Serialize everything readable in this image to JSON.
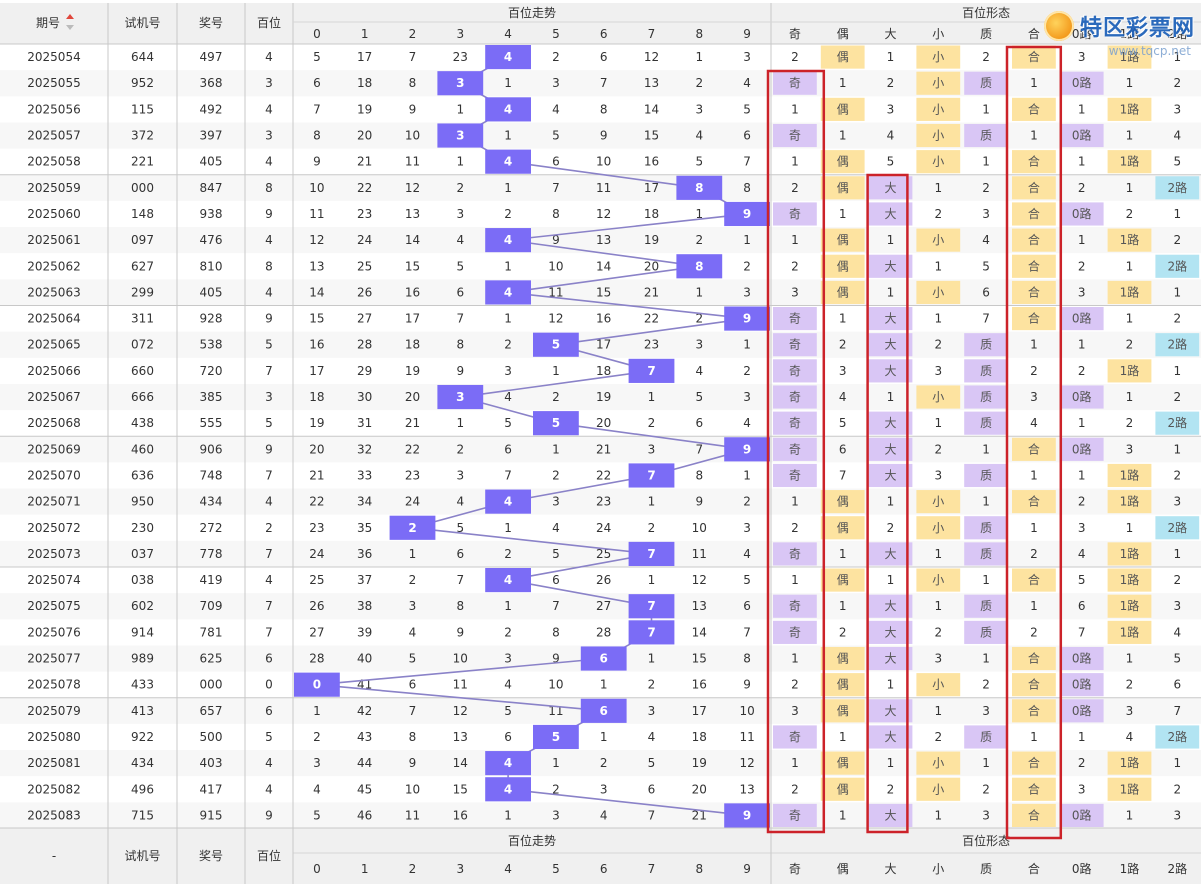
{
  "watermark": {
    "text": "特区彩票网",
    "sub": "www.tqcp.net"
  },
  "header": {
    "col_period": "期号",
    "sort_icon": "sort-up-icon",
    "col_trial": "试机号",
    "col_prize": "奖号",
    "col_hundreds": "百位",
    "group_trend": "百位走势",
    "group_form": "百位形态",
    "digits": [
      "0",
      "1",
      "2",
      "3",
      "4",
      "5",
      "6",
      "7",
      "8",
      "9"
    ],
    "form_cols": [
      "奇",
      "偶",
      "大",
      "小",
      "质",
      "合",
      "0路",
      "1路",
      "2路"
    ]
  },
  "footer": {
    "period": "-",
    "trial": "试机号",
    "prize": "奖号",
    "hundreds": "百位",
    "group_trend": "百位走势",
    "group_form": "百位形态"
  },
  "colors": {
    "ball": "#7b6cf6",
    "line": "#8a82c8",
    "purple_cell": "#d9c6f5",
    "yellow_cell": "#fde3a0",
    "blue_cell": "#b2e4f2",
    "red_box": "#cc2229",
    "header_bg": "#f0f0f0",
    "row_alt": "#f7f7f7"
  },
  "rows": [
    {
      "p": "2025054",
      "t": "644",
      "z": "497",
      "h": 4,
      "m": [
        5,
        17,
        7,
        23,
        null,
        2,
        6,
        12,
        1,
        3
      ],
      "f": [
        "2",
        "偶",
        "1",
        "小",
        "2",
        "合",
        "3",
        "1路",
        "1"
      ],
      "cut": true
    },
    {
      "p": "2025055",
      "t": "952",
      "z": "368",
      "h": 3,
      "m": [
        6,
        18,
        8,
        null,
        1,
        3,
        7,
        13,
        2,
        4
      ],
      "f": [
        "奇",
        "1",
        "2",
        "小",
        "质",
        "1",
        "0路",
        "1",
        "2"
      ]
    },
    {
      "p": "2025056",
      "t": "115",
      "z": "492",
      "h": 4,
      "m": [
        7,
        19,
        9,
        1,
        null,
        4,
        8,
        14,
        3,
        5
      ],
      "f": [
        "1",
        "偶",
        "3",
        "小",
        "1",
        "合",
        "1",
        "1路",
        "3"
      ]
    },
    {
      "p": "2025057",
      "t": "372",
      "z": "397",
      "h": 3,
      "m": [
        8,
        20,
        10,
        null,
        1,
        5,
        9,
        15,
        4,
        6
      ],
      "f": [
        "奇",
        "1",
        "4",
        "小",
        "质",
        "1",
        "0路",
        "1",
        "4"
      ]
    },
    {
      "p": "2025058",
      "t": "221",
      "z": "405",
      "h": 4,
      "m": [
        9,
        21,
        11,
        1,
        null,
        6,
        10,
        16,
        5,
        7
      ],
      "f": [
        "1",
        "偶",
        "5",
        "小",
        "1",
        "合",
        "1",
        "1路",
        "5"
      ]
    },
    {
      "p": "2025059",
      "t": "000",
      "z": "847",
      "h": 8,
      "m": [
        10,
        22,
        12,
        2,
        1,
        7,
        11,
        17,
        null,
        8
      ],
      "f": [
        "2",
        "偶",
        "大",
        "1",
        "2",
        "合",
        "2",
        "1",
        "2路"
      ]
    },
    {
      "p": "2025060",
      "t": "148",
      "z": "938",
      "h": 9,
      "m": [
        11,
        23,
        13,
        3,
        2,
        8,
        12,
        18,
        1,
        null
      ],
      "f": [
        "奇",
        "1",
        "大",
        "2",
        "3",
        "合",
        "0路",
        "2",
        "1"
      ]
    },
    {
      "p": "2025061",
      "t": "097",
      "z": "476",
      "h": 4,
      "m": [
        12,
        24,
        14,
        4,
        null,
        9,
        13,
        19,
        2,
        1
      ],
      "f": [
        "1",
        "偶",
        "1",
        "小",
        "4",
        "合",
        "1",
        "1路",
        "2"
      ]
    },
    {
      "p": "2025062",
      "t": "627",
      "z": "810",
      "h": 8,
      "m": [
        13,
        25,
        15,
        5,
        1,
        10,
        14,
        20,
        null,
        2
      ],
      "f": [
        "2",
        "偶",
        "大",
        "1",
        "5",
        "合",
        "2",
        "1",
        "2路"
      ]
    },
    {
      "p": "2025063",
      "t": "299",
      "z": "405",
      "h": 4,
      "m": [
        14,
        26,
        16,
        6,
        null,
        11,
        15,
        21,
        1,
        3
      ],
      "f": [
        "3",
        "偶",
        "1",
        "小",
        "6",
        "合",
        "3",
        "1路",
        "1"
      ]
    },
    {
      "p": "2025064",
      "t": "311",
      "z": "928",
      "h": 9,
      "m": [
        15,
        27,
        17,
        7,
        1,
        12,
        16,
        22,
        2,
        null
      ],
      "f": [
        "奇",
        "1",
        "大",
        "1",
        "7",
        "合",
        "0路",
        "1",
        "2"
      ]
    },
    {
      "p": "2025065",
      "t": "072",
      "z": "538",
      "h": 5,
      "m": [
        16,
        28,
        18,
        8,
        2,
        null,
        17,
        23,
        3,
        1
      ],
      "f": [
        "奇",
        "2",
        "大",
        "2",
        "质",
        "1",
        "1",
        "2",
        "2路"
      ]
    },
    {
      "p": "2025066",
      "t": "660",
      "z": "720",
      "h": 7,
      "m": [
        17,
        29,
        19,
        9,
        3,
        1,
        18,
        null,
        4,
        2
      ],
      "f": [
        "奇",
        "3",
        "大",
        "3",
        "质",
        "2",
        "2",
        "1路",
        "1"
      ]
    },
    {
      "p": "2025067",
      "t": "666",
      "z": "385",
      "h": 3,
      "m": [
        18,
        30,
        20,
        null,
        4,
        2,
        19,
        1,
        5,
        3
      ],
      "f": [
        "奇",
        "4",
        "1",
        "小",
        "质",
        "3",
        "0路",
        "1",
        "2"
      ]
    },
    {
      "p": "2025068",
      "t": "438",
      "z": "555",
      "h": 5,
      "m": [
        19,
        31,
        21,
        1,
        5,
        null,
        20,
        2,
        6,
        4
      ],
      "f": [
        "奇",
        "5",
        "大",
        "1",
        "质",
        "4",
        "1",
        "2",
        "2路"
      ]
    },
    {
      "p": "2025069",
      "t": "460",
      "z": "906",
      "h": 9,
      "m": [
        20,
        32,
        22,
        2,
        6,
        1,
        21,
        3,
        7,
        null
      ],
      "f": [
        "奇",
        "6",
        "大",
        "2",
        "1",
        "合",
        "0路",
        "3",
        "1"
      ]
    },
    {
      "p": "2025070",
      "t": "636",
      "z": "748",
      "h": 7,
      "m": [
        21,
        33,
        23,
        3,
        7,
        2,
        22,
        null,
        8,
        1
      ],
      "f": [
        "奇",
        "7",
        "大",
        "3",
        "质",
        "1",
        "1",
        "1路",
        "2"
      ]
    },
    {
      "p": "2025071",
      "t": "950",
      "z": "434",
      "h": 4,
      "m": [
        22,
        34,
        24,
        4,
        null,
        3,
        23,
        1,
        9,
        2
      ],
      "f": [
        "1",
        "偶",
        "1",
        "小",
        "1",
        "合",
        "2",
        "1路",
        "3"
      ]
    },
    {
      "p": "2025072",
      "t": "230",
      "z": "272",
      "h": 2,
      "m": [
        23,
        35,
        null,
        5,
        1,
        4,
        24,
        2,
        10,
        3
      ],
      "f": [
        "2",
        "偶",
        "2",
        "小",
        "质",
        "1",
        "3",
        "1",
        "2路"
      ]
    },
    {
      "p": "2025073",
      "t": "037",
      "z": "778",
      "h": 7,
      "m": [
        24,
        36,
        1,
        6,
        2,
        5,
        25,
        null,
        11,
        4
      ],
      "f": [
        "奇",
        "1",
        "大",
        "1",
        "质",
        "2",
        "4",
        "1路",
        "1"
      ]
    },
    {
      "p": "2025074",
      "t": "038",
      "z": "419",
      "h": 4,
      "m": [
        25,
        37,
        2,
        7,
        null,
        6,
        26,
        1,
        12,
        5
      ],
      "f": [
        "1",
        "偶",
        "1",
        "小",
        "1",
        "合",
        "5",
        "1路",
        "2"
      ]
    },
    {
      "p": "2025075",
      "t": "602",
      "z": "709",
      "h": 7,
      "m": [
        26,
        38,
        3,
        8,
        1,
        7,
        27,
        null,
        13,
        6
      ],
      "f": [
        "奇",
        "1",
        "大",
        "1",
        "质",
        "1",
        "6",
        "1路",
        "3"
      ]
    },
    {
      "p": "2025076",
      "t": "914",
      "z": "781",
      "h": 7,
      "m": [
        27,
        39,
        4,
        9,
        2,
        8,
        28,
        null,
        14,
        7
      ],
      "f": [
        "奇",
        "2",
        "大",
        "2",
        "质",
        "2",
        "7",
        "1路",
        "4"
      ]
    },
    {
      "p": "2025077",
      "t": "989",
      "z": "625",
      "h": 6,
      "m": [
        28,
        40,
        5,
        10,
        3,
        9,
        null,
        1,
        15,
        8
      ],
      "f": [
        "1",
        "偶",
        "大",
        "3",
        "1",
        "合",
        "0路",
        "1",
        "5"
      ]
    },
    {
      "p": "2025078",
      "t": "433",
      "z": "000",
      "h": 0,
      "m": [
        null,
        41,
        6,
        11,
        4,
        10,
        1,
        2,
        16,
        9
      ],
      "f": [
        "2",
        "偶",
        "1",
        "小",
        "2",
        "合",
        "0路",
        "2",
        "6"
      ]
    },
    {
      "p": "2025079",
      "t": "413",
      "z": "657",
      "h": 6,
      "m": [
        1,
        42,
        7,
        12,
        5,
        11,
        null,
        3,
        17,
        10
      ],
      "f": [
        "3",
        "偶",
        "大",
        "1",
        "3",
        "合",
        "0路",
        "3",
        "7"
      ]
    },
    {
      "p": "2025080",
      "t": "922",
      "z": "500",
      "h": 5,
      "m": [
        2,
        43,
        8,
        13,
        6,
        null,
        1,
        4,
        18,
        11
      ],
      "f": [
        "奇",
        "1",
        "大",
        "2",
        "质",
        "1",
        "1",
        "4",
        "2路"
      ]
    },
    {
      "p": "2025081",
      "t": "434",
      "z": "403",
      "h": 4,
      "m": [
        3,
        44,
        9,
        14,
        null,
        1,
        2,
        5,
        19,
        12
      ],
      "f": [
        "1",
        "偶",
        "1",
        "小",
        "1",
        "合",
        "2",
        "1路",
        "1"
      ]
    },
    {
      "p": "2025082",
      "t": "496",
      "z": "417",
      "h": 4,
      "m": [
        4,
        45,
        10,
        15,
        null,
        2,
        3,
        6,
        20,
        13
      ],
      "f": [
        "2",
        "偶",
        "2",
        "小",
        "2",
        "合",
        "3",
        "1路",
        "2"
      ]
    },
    {
      "p": "2025083",
      "t": "715",
      "z": "915",
      "h": 9,
      "m": [
        5,
        46,
        11,
        16,
        1,
        3,
        4,
        7,
        21,
        null
      ],
      "f": [
        "奇",
        "1",
        "大",
        "1",
        "3",
        "合",
        "0路",
        "1",
        "3"
      ]
    }
  ]
}
